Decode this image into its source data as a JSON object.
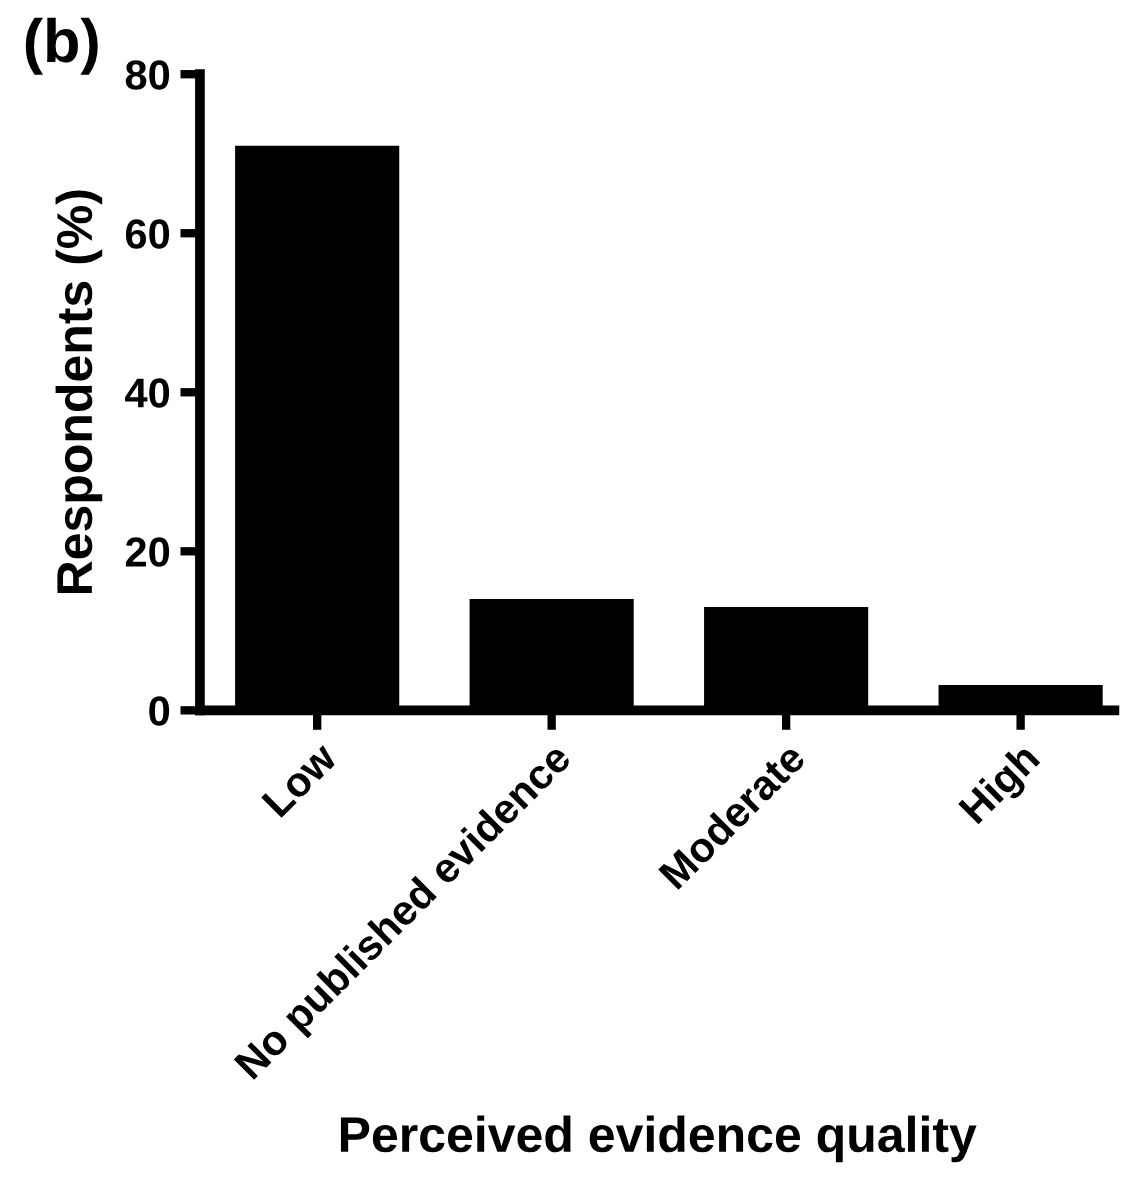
{
  "chart_data": {
    "type": "bar",
    "categories": [
      "Low",
      "No published evidence",
      "Moderate",
      "High"
    ],
    "values": [
      71,
      14,
      13,
      3.2
    ],
    "color": "#000000",
    "xlabel": "Perceived evidence quality",
    "ylabel": "Respondents (%)",
    "annotations": [
      "(b)"
    ],
    "ylim": [
      0,
      80
    ],
    "yticks": [
      0,
      20,
      40,
      60,
      80
    ],
    "grid": false,
    "legend": false
  }
}
